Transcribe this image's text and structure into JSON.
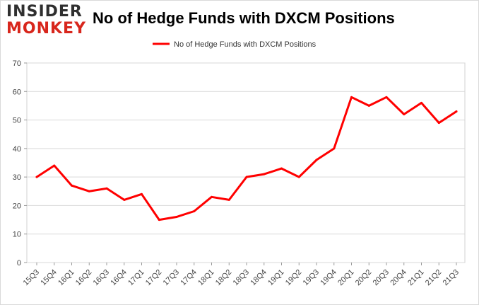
{
  "logo": {
    "top": "INSIDER",
    "bottom": "MONKEY"
  },
  "chart_data": {
    "type": "line",
    "title": "No of Hedge Funds with DXCM Positions",
    "xlabel": "",
    "ylabel": "",
    "ylim": [
      0,
      70
    ],
    "yticks": [
      0,
      10,
      20,
      30,
      40,
      50,
      60,
      70
    ],
    "grid": true,
    "legend_position": "top-center",
    "line_color": "#ff0000",
    "categories": [
      "15Q3",
      "15Q4",
      "16Q1",
      "16Q2",
      "16Q3",
      "16Q4",
      "17Q1",
      "17Q2",
      "17Q3",
      "17Q4",
      "18Q1",
      "18Q2",
      "18Q3",
      "18Q4",
      "19Q1",
      "19Q2",
      "19Q3",
      "19Q4",
      "20Q1",
      "20Q2",
      "20Q3",
      "20Q4",
      "21Q1",
      "21Q2",
      "21Q3"
    ],
    "series": [
      {
        "name": "No of Hedge Funds with DXCM Positions",
        "values": [
          30,
          34,
          27,
          25,
          26,
          22,
          24,
          15,
          16,
          18,
          23,
          22,
          30,
          31,
          33,
          30,
          36,
          40,
          58,
          55,
          58,
          52,
          56,
          49,
          53
        ]
      }
    ]
  }
}
